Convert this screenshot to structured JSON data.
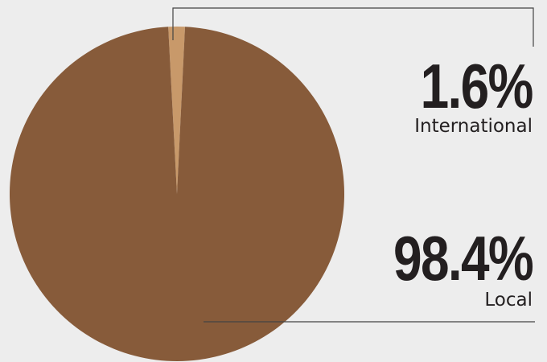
{
  "chart_data": {
    "type": "pie",
    "categories": [
      "International",
      "Local"
    ],
    "values": [
      1.6,
      98.4
    ],
    "value_labels": [
      "1.6%",
      "98.4%"
    ],
    "colors": [
      "#c8996a",
      "#875b3a"
    ],
    "start_angle_deg": -3,
    "title": "",
    "legend": "callout-labels-right"
  },
  "colors": {
    "background": "#ededed",
    "text": "#231f20",
    "leader_line": "#444444"
  }
}
